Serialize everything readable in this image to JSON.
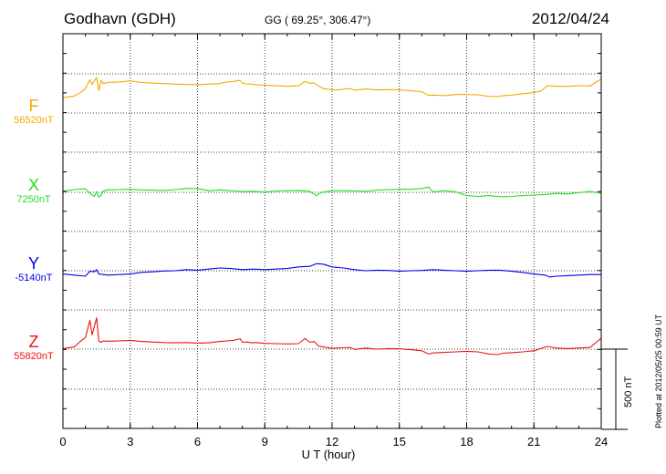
{
  "header": {
    "station": "Godhavn (GDH)",
    "coordinates": "GG ( 69.25°, 306.47°)",
    "date": "2012/04/24"
  },
  "footer": {
    "plotted": "Plotted at 2012/05/25 00:59 UT"
  },
  "chart_data": {
    "type": "line",
    "title": "Godhavn (GDH)",
    "xlabel": "U T (hour)",
    "xlim": [
      0,
      24
    ],
    "xticks": [
      "0",
      "3",
      "6",
      "9",
      "12",
      "15",
      "18",
      "21",
      "24"
    ],
    "grid": "dotted",
    "scale_bar": {
      "label": "500 nT",
      "value": 500
    },
    "series": [
      {
        "name": "F",
        "baseline_label": "56520nT",
        "baseline": 56520,
        "color": "#f5a800",
        "x": [
          0,
          0.5,
          0.8,
          1.0,
          1.2,
          1.3,
          1.5,
          1.6,
          1.7,
          1.8,
          2.0,
          2.5,
          3.0,
          3.5,
          4.0,
          4.5,
          5.0,
          5.5,
          6.0,
          6.5,
          7.0,
          7.3,
          7.6,
          7.9,
          8.0,
          8.2,
          8.4,
          8.6,
          9.0,
          9.5,
          10.0,
          10.5,
          10.8,
          11.0,
          11.2,
          11.4,
          11.6,
          12.0,
          12.4,
          12.8,
          13.0,
          13.5,
          14.0,
          14.5,
          15.0,
          15.5,
          16.0,
          16.3,
          16.5,
          17.0,
          17.5,
          18.0,
          18.5,
          19.0,
          19.4,
          19.6,
          20.0,
          20.5,
          21.0,
          21.3,
          21.6,
          22.0,
          22.5,
          23.0,
          23.5,
          24.0
        ],
        "y": [
          560,
          620,
          760,
          900,
          1220,
          1050,
          1300,
          820,
          1200,
          1080,
          1120,
          1140,
          1180,
          1120,
          1100,
          1080,
          1060,
          1050,
          1040,
          1060,
          1080,
          1140,
          1160,
          1200,
          1090,
          1070,
          1060,
          1040,
          1020,
          1000,
          980,
          1000,
          1160,
          1090,
          1100,
          990,
          900,
          850,
          860,
          900,
          840,
          880,
          850,
          860,
          850,
          820,
          780,
          650,
          660,
          640,
          680,
          680,
          670,
          610,
          600,
          640,
          660,
          710,
          750,
          800,
          1000,
          980,
          980,
          1000,
          990,
          1250
        ],
        "offset": 0
      },
      {
        "name": "X",
        "baseline_label": "7250nT",
        "baseline": 7250,
        "color": "#22dd22",
        "x": [
          0,
          0.5,
          1.0,
          1.2,
          1.4,
          1.5,
          1.6,
          1.7,
          1.8,
          2.0,
          2.5,
          3.0,
          3.5,
          4.0,
          4.5,
          5.0,
          5.5,
          6.0,
          6.5,
          7.0,
          7.5,
          8.0,
          8.5,
          9.0,
          9.5,
          10.0,
          10.5,
          11.0,
          11.3,
          11.5,
          12.0,
          12.5,
          13.0,
          13.5,
          14.0,
          14.5,
          15.0,
          15.5,
          16.0,
          16.3,
          16.5,
          17.0,
          17.5,
          18.0,
          18.5,
          19.0,
          19.5,
          20.0,
          20.5,
          21.0,
          21.5,
          22.0,
          22.5,
          23.0,
          23.5,
          24.0
        ],
        "y": [
          40,
          100,
          130,
          -40,
          -150,
          30,
          -170,
          -120,
          60,
          90,
          100,
          110,
          90,
          80,
          70,
          100,
          140,
          140,
          60,
          90,
          60,
          30,
          40,
          10,
          50,
          60,
          70,
          40,
          -120,
          -10,
          60,
          60,
          50,
          40,
          80,
          100,
          110,
          110,
          140,
          190,
          20,
          60,
          20,
          -120,
          -150,
          -120,
          -160,
          -150,
          -120,
          -100,
          -80,
          -40,
          -60,
          -10,
          30,
          -30
        ],
        "offset": 0
      },
      {
        "name": "Y",
        "baseline_label": "-5140nT",
        "baseline": -5140,
        "color": "#0000ee",
        "x": [
          0,
          0.5,
          1.0,
          1.2,
          1.4,
          1.5,
          1.6,
          1.8,
          2.0,
          2.5,
          3.0,
          3.5,
          4.0,
          4.5,
          5.0,
          5.5,
          6.0,
          6.5,
          7.0,
          7.5,
          8.0,
          8.5,
          9.0,
          9.5,
          10.0,
          10.5,
          11.0,
          11.3,
          11.6,
          12.0,
          12.5,
          13.0,
          13.5,
          14.0,
          14.5,
          15.0,
          15.5,
          16.0,
          16.5,
          17.0,
          17.5,
          18.0,
          18.5,
          19.0,
          19.5,
          20.0,
          20.5,
          21.0,
          21.5,
          21.7,
          22.0,
          22.5,
          23.0,
          23.5,
          24.0
        ],
        "y": [
          -120,
          -160,
          -200,
          -20,
          -40,
          40,
          -120,
          -140,
          -160,
          -140,
          -120,
          -60,
          -40,
          -10,
          0,
          40,
          20,
          60,
          100,
          80,
          40,
          60,
          40,
          60,
          80,
          140,
          160,
          260,
          240,
          140,
          100,
          40,
          0,
          20,
          10,
          -20,
          0,
          10,
          40,
          20,
          0,
          -20,
          0,
          20,
          20,
          -20,
          -60,
          -120,
          -160,
          -230,
          -200,
          -180,
          -160,
          -140,
          -140
        ],
        "offset": 0
      },
      {
        "name": "Z",
        "baseline_label": "55820nT",
        "baseline": 55820,
        "color": "#ee1111",
        "x": [
          0,
          0.5,
          0.8,
          1.0,
          1.2,
          1.3,
          1.5,
          1.6,
          1.7,
          1.8,
          2.0,
          2.5,
          3.0,
          3.5,
          4.0,
          4.5,
          5.0,
          5.5,
          6.0,
          6.5,
          7.0,
          7.3,
          7.6,
          7.9,
          8.0,
          8.2,
          8.4,
          8.6,
          9.0,
          9.5,
          10.0,
          10.5,
          10.8,
          11.0,
          11.2,
          11.4,
          11.6,
          12.0,
          12.4,
          12.8,
          13.0,
          13.5,
          14.0,
          14.5,
          15.0,
          15.5,
          16.0,
          16.3,
          16.5,
          17.0,
          17.5,
          18.0,
          18.5,
          19.0,
          19.4,
          19.6,
          20.0,
          20.5,
          21.0,
          21.3,
          21.6,
          22.0,
          22.5,
          23.0,
          23.5,
          24.0
        ],
        "y": [
          20,
          80,
          300,
          420,
          1050,
          520,
          1150,
          300,
          250,
          300,
          290,
          300,
          320,
          280,
          260,
          240,
          230,
          240,
          220,
          230,
          280,
          300,
          320,
          380,
          250,
          260,
          230,
          240,
          210,
          200,
          190,
          200,
          390,
          250,
          280,
          110,
          80,
          30,
          50,
          60,
          -10,
          40,
          0,
          20,
          10,
          -20,
          -60,
          -180,
          -140,
          -120,
          -100,
          -80,
          -100,
          -180,
          -200,
          -150,
          -130,
          -100,
          -60,
          20,
          100,
          40,
          20,
          40,
          60,
          400
        ],
        "offset": 0
      }
    ]
  }
}
